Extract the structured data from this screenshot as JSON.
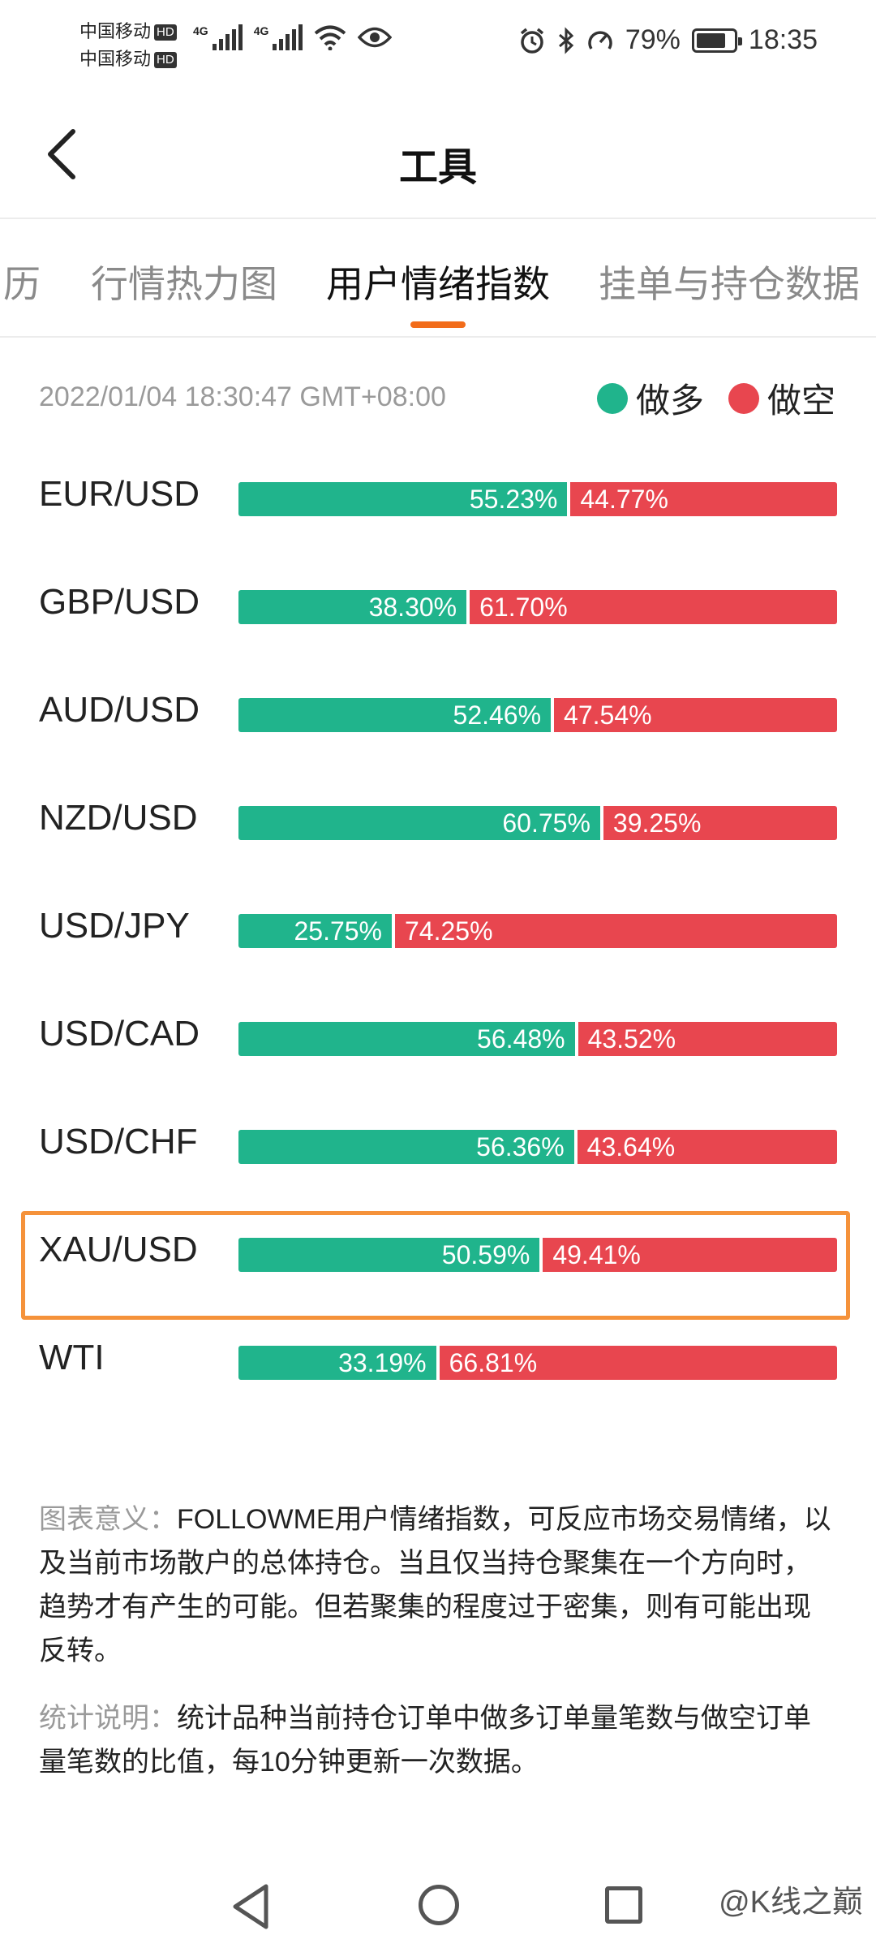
{
  "status_bar": {
    "carrier_1": "中国移动",
    "carrier_2": "中国移动",
    "hd": "HD",
    "net_1": "4G",
    "net_2": "4G",
    "battery_percent": "79%",
    "battery_level": 0.79,
    "time": "18:35"
  },
  "header": {
    "title": "工具"
  },
  "tabs": [
    {
      "label": "历"
    },
    {
      "label": "行情热力图"
    },
    {
      "label": "用户情绪指数",
      "active": true
    },
    {
      "label": "挂单与持仓数据"
    }
  ],
  "meta": {
    "timestamp": "2022/01/04 18:30:47 GMT+08:00"
  },
  "legend": {
    "long": {
      "label": "做多",
      "color": "#20b48c"
    },
    "short": {
      "label": "做空",
      "color": "#e8464f"
    }
  },
  "chart_data": {
    "type": "bar",
    "categories": [
      "EUR/USD",
      "GBP/USD",
      "AUD/USD",
      "NZD/USD",
      "USD/JPY",
      "USD/CAD",
      "USD/CHF",
      "XAU/USD",
      "WTI"
    ],
    "series": [
      {
        "name": "做多",
        "values": [
          55.23,
          38.3,
          52.46,
          60.75,
          25.75,
          56.48,
          56.36,
          50.59,
          33.19
        ],
        "labels": [
          "55.23%",
          "38.30%",
          "52.46%",
          "60.75%",
          "25.75%",
          "56.48%",
          "56.36%",
          "50.59%",
          "33.19%"
        ]
      },
      {
        "name": "做空",
        "values": [
          44.77,
          61.7,
          47.54,
          39.25,
          74.25,
          43.52,
          43.64,
          49.41,
          66.81
        ],
        "labels": [
          "44.77%",
          "61.70%",
          "47.54%",
          "39.25%",
          "74.25%",
          "43.52%",
          "43.64%",
          "49.41%",
          "66.81%"
        ]
      }
    ],
    "stacked": true,
    "orientation": "horizontal",
    "highlighted_category": "XAU/USD"
  },
  "notes": {
    "meaning_label": "图表意义：",
    "meaning_text": "FOLLOWME用户情绪指数，可反应市场交易情绪，以及当前市场散户的总体持仓。当且仅当持仓聚集在一个方向时，趋势才有产生的可能。但若聚集的程度过于密集，则有可能出现反转。",
    "stats_label": "统计说明：",
    "stats_text": "统计品种当前持仓订单中做多订单量笔数与做空订单量笔数的比值，每10分钟更新一次数据。"
  },
  "watermark": "@K线之巅"
}
